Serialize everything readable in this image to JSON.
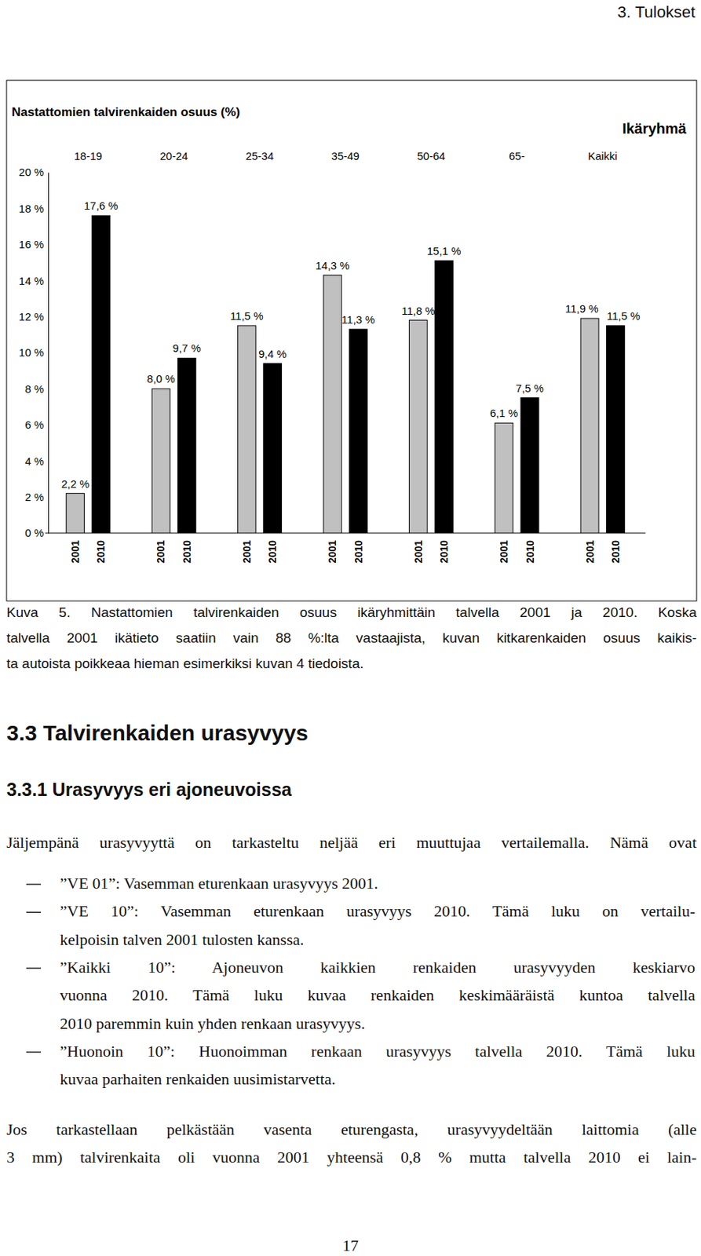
{
  "header": "3. Tulokset",
  "chart_data": {
    "type": "bar",
    "title": "Nastattomien talvirenkaiden osuus (%)",
    "xlabel": "Ikäryhmä",
    "categories": [
      "18-19",
      "20-24",
      "25-34",
      "35-49",
      "50-64",
      "65-",
      "Kaikki"
    ],
    "series": [
      {
        "name": "2001",
        "color": "#c0c0c0",
        "values": [
          2.2,
          8.0,
          11.5,
          14.3,
          11.8,
          6.1,
          11.9
        ],
        "value_labels": [
          "2,2 %",
          "8,0 %",
          "11,5 %",
          "14,3 %",
          "11,8 %",
          "6,1 %",
          "11,9 %"
        ]
      },
      {
        "name": "2010",
        "color": "#000000",
        "values": [
          17.6,
          9.7,
          9.4,
          11.3,
          15.1,
          7.5,
          11.5
        ],
        "value_labels": [
          "17,6 %",
          "9,7 %",
          "9,4 %",
          "11,3 %",
          "15,1 %",
          "7,5 %",
          "11,5 %"
        ]
      }
    ],
    "ylim": [
      0,
      20
    ],
    "yticks": [
      {
        "value": 0,
        "label": "0 %"
      },
      {
        "value": 2,
        "label": "2 %"
      },
      {
        "value": 4,
        "label": "4 %"
      },
      {
        "value": 6,
        "label": "6 %"
      },
      {
        "value": 8,
        "label": "8 %"
      },
      {
        "value": 10,
        "label": "10 %"
      },
      {
        "value": 12,
        "label": "12 %"
      },
      {
        "value": 14,
        "label": "14 %"
      },
      {
        "value": 16,
        "label": "16 %"
      },
      {
        "value": 18,
        "label": "18 %"
      },
      {
        "value": 20,
        "label": "20 %"
      }
    ],
    "grid": false,
    "data_labels": true
  },
  "caption": [
    "Kuva 5. Nastattomien talvirenkaiden osuus ikäryhmittäin talvella 2001 ja 2010. Koska",
    "talvella 2001 ikätieto saatiin vain 88 %:lta vastaajista, kuvan kitkarenkaiden osuus kaikis-",
    "ta autoista poikkeaa hieman esimerkiksi kuvan 4 tiedoista."
  ],
  "section_heading": "3.3 Talvirenkaiden urasyvyys",
  "subsection_heading": "3.3.1 Urasyvyys eri ajoneuvoissa",
  "intro": "Jäljempänä urasyvyyttä on tarkasteltu neljää eri muuttujaa vertailemalla. Nämä ovat",
  "list": [
    [
      "”VE 01”: Vasemman eturenkaan urasyvyys 2001."
    ],
    [
      "”VE 10”: Vasemman eturenkaan urasyvyys 2010. Tämä luku on vertailu-",
      "kelpoisin talven 2001 tulosten kanssa."
    ],
    [
      "”Kaikki 10”: Ajoneuvon kaikkien renkaiden urasyvyyden keskiarvo",
      "vuonna 2010. Tämä luku kuvaa renkaiden keskimääräistä kuntoa talvella",
      "2010 paremmin kuin yhden renkaan urasyvyys."
    ],
    [
      "”Huonoin 10”: Huonoimman renkaan urasyvyys talvella 2010. Tämä luku",
      "kuvaa parhaiten renkaiden uusimistarvetta."
    ]
  ],
  "paragraph": [
    "Jos tarkastellaan pelkästään vasenta eturengasta, urasyvyydeltään laittomia (alle",
    "3 mm) talvirenkaita oli vuonna 2001 yhteensä 0,8 % mutta talvella 2010 ei lain-"
  ],
  "page_number": "17"
}
